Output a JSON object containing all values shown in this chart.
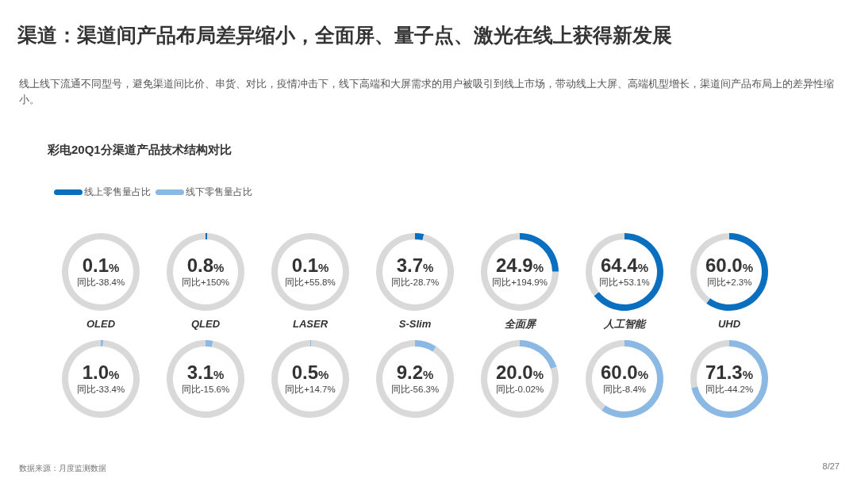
{
  "chart_data": [
    {
      "type": "other",
      "title": "渠道：渠道间产品布局差异缩小，全面屏、量子点、激光在线上获得新发展",
      "subtitle": "线上线下流通不同型号，避免渠道间比价、串货、对比，疫情冲击下，线下高端和大屏需求的用户被吸引到线上市场，带动线上大屏、高端机型增长，渠道间产品布局上的差异性缩小。",
      "annotations": [
        "彩电20Q1分渠道产品技术结构对比",
        "数据来源：月度监测数据",
        "8/27"
      ],
      "series": [
        {
          "name": "线上零售量占比",
          "color": "#0b6fc0"
        },
        {
          "name": "线下零售量占比",
          "color": "#8cb8e4"
        }
      ],
      "legend": "top left"
    },
    {
      "type": "donut",
      "title": "OLED",
      "categories": [
        null,
        null
      ],
      "values": [
        0.1,
        99.9
      ],
      "colors": [
        "#0b6fc0",
        "#d9d9d9"
      ],
      "value_labels": [
        "0.1%",
        null
      ],
      "annotations": [
        "同比-38.4%"
      ]
    },
    {
      "type": "donut",
      "title": "QLED",
      "categories": [
        null,
        null
      ],
      "values": [
        0.8,
        99.2
      ],
      "colors": [
        "#0b6fc0",
        "#d9d9d9"
      ],
      "value_labels": [
        "0.8%",
        null
      ],
      "annotations": [
        "同比+150%"
      ]
    },
    {
      "type": "donut",
      "title": "LASER",
      "categories": [
        null,
        null
      ],
      "values": [
        0.1,
        99.9
      ],
      "colors": [
        "#0b6fc0",
        "#d9d9d9"
      ],
      "value_labels": [
        "0.1%",
        null
      ],
      "annotations": [
        "同比+55.8%"
      ]
    },
    {
      "type": "donut",
      "title": "S-Slim",
      "categories": [
        null,
        null
      ],
      "values": [
        3.7,
        96.3
      ],
      "colors": [
        "#0b6fc0",
        "#d9d9d9"
      ],
      "value_labels": [
        "3.7%",
        null
      ],
      "annotations": [
        "同比-28.7%"
      ]
    },
    {
      "type": "donut",
      "title": "全面屏",
      "categories": [
        null,
        null
      ],
      "values": [
        24.9,
        75.1
      ],
      "colors": [
        "#0b6fc0",
        "#d9d9d9"
      ],
      "value_labels": [
        "24.9%",
        null
      ],
      "annotations": [
        "同比+194.9%"
      ]
    },
    {
      "type": "donut",
      "title": "人工智能",
      "categories": [
        null,
        null
      ],
      "values": [
        64.4,
        35.6
      ],
      "colors": [
        "#0b6fc0",
        "#d9d9d9"
      ],
      "value_labels": [
        "64.4%",
        null
      ],
      "annotations": [
        "同比+53.1%"
      ]
    },
    {
      "type": "donut",
      "title": "UHD",
      "categories": [
        null,
        null
      ],
      "values": [
        60.0,
        40.0
      ],
      "colors": [
        "#0b6fc0",
        "#d9d9d9"
      ],
      "value_labels": [
        "60.0%",
        null
      ],
      "annotations": [
        "同比+2.3%"
      ]
    },
    {
      "type": "donut",
      "categories": [
        null,
        null
      ],
      "values": [
        1.0,
        99.0
      ],
      "colors": [
        "#8cb8e4",
        "#d9d9d9"
      ],
      "value_labels": [
        "1.0%",
        null
      ],
      "annotations": [
        "同比-33.4%"
      ]
    },
    {
      "type": "donut",
      "categories": [
        null,
        null
      ],
      "values": [
        3.1,
        96.9
      ],
      "colors": [
        "#8cb8e4",
        "#d9d9d9"
      ],
      "value_labels": [
        "3.1%",
        null
      ],
      "annotations": [
        "同比-15.6%"
      ]
    },
    {
      "type": "donut",
      "categories": [
        null,
        null
      ],
      "values": [
        0.5,
        99.5
      ],
      "colors": [
        "#8cb8e4",
        "#d9d9d9"
      ],
      "value_labels": [
        "0.5%",
        null
      ],
      "annotations": [
        "同比+14.7%"
      ]
    },
    {
      "type": "donut",
      "categories": [
        null,
        null
      ],
      "values": [
        9.2,
        90.8
      ],
      "colors": [
        "#8cb8e4",
        "#d9d9d9"
      ],
      "value_labels": [
        "9.2%",
        null
      ],
      "annotations": [
        "同比-56.3%"
      ]
    },
    {
      "type": "donut",
      "categories": [
        null,
        null
      ],
      "values": [
        20.0,
        80.0
      ],
      "colors": [
        "#8cb8e4",
        "#d9d9d9"
      ],
      "value_labels": [
        "20.0%",
        null
      ],
      "annotations": [
        "同比-0.02%"
      ]
    },
    {
      "type": "donut",
      "categories": [
        null,
        null
      ],
      "values": [
        60.0,
        40.0
      ],
      "colors": [
        "#8cb8e4",
        "#d9d9d9"
      ],
      "value_labels": [
        "60.0%",
        null
      ],
      "annotations": [
        "同比-8.4%"
      ]
    },
    {
      "type": "donut",
      "categories": [
        null,
        null
      ],
      "values": [
        71.3,
        28.7
      ],
      "colors": [
        "#8cb8e4",
        "#d9d9d9"
      ],
      "value_labels": [
        "71.3%",
        null
      ],
      "annotations": [
        "同比-44.2%"
      ]
    }
  ]
}
